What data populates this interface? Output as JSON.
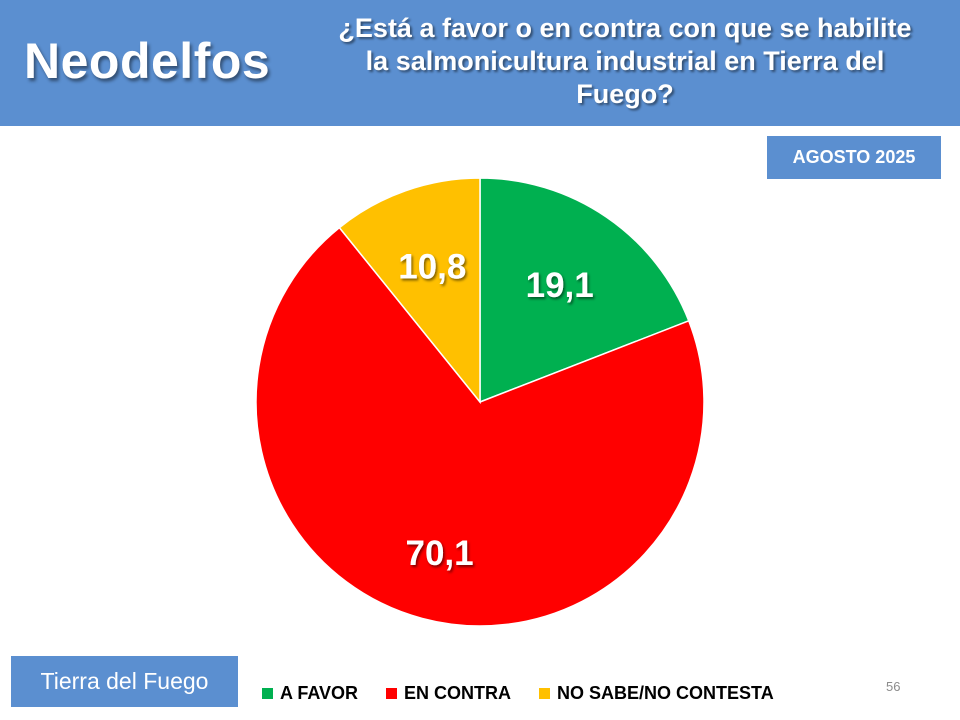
{
  "header": {
    "brand": "Neodelfos",
    "question": "¿Está a favor o en contra con que se habilite la salmonicultura industrial en Tierra del Fuego?"
  },
  "date_badge": "AGOSTO 2025",
  "region_badge": "Tierra del Fuego",
  "page_number": "56",
  "colors": {
    "header_bg": "#5b8fd0",
    "a_favor": "#00b050",
    "en_contra": "#ff0000",
    "no_sabe": "#ffc000"
  },
  "chart_data": {
    "type": "pie",
    "title": "¿Está a favor o en contra con que se habilite la salmonicultura industrial en Tierra del Fuego?",
    "categories": [
      "A FAVOR",
      "EN CONTRA",
      "NO SABE/NO CONTESTA"
    ],
    "values": [
      19.1,
      70.1,
      10.8
    ],
    "data_labels": [
      "19,1",
      "70,1",
      "10,8"
    ],
    "colors": [
      "#00b050",
      "#ff0000",
      "#ffc000"
    ],
    "start_angle": "12 o'clock",
    "direction": "clockwise",
    "legend_position": "bottom"
  }
}
